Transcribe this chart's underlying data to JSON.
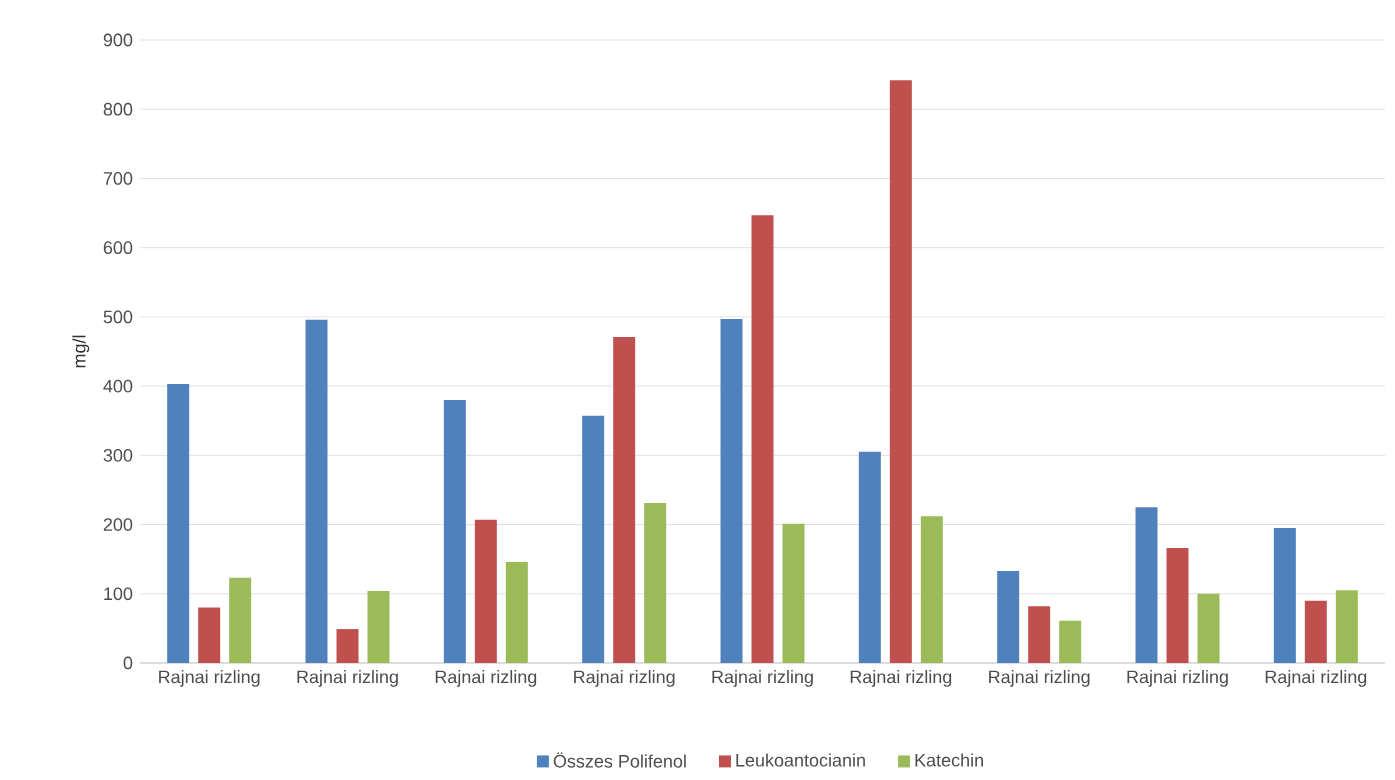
{
  "chart_data": {
    "type": "bar",
    "ylabel": "mg/l",
    "categories": [
      "Rajnai rizling",
      "Rajnai rizling",
      "Rajnai rizling",
      "Rajnai rizling",
      "Rajnai rizling",
      "Rajnai rizling",
      "Rajnai rizling",
      "Rajnai rizling",
      "Rajnai rizling"
    ],
    "series": [
      {
        "name": "Összes Polifenol",
        "color": "#4f81bd",
        "values": [
          403,
          496,
          380,
          357,
          497,
          305,
          133,
          225,
          195
        ]
      },
      {
        "name": "Leukoantocianin",
        "color": "#c0504d",
        "values": [
          80,
          49,
          207,
          471,
          647,
          842,
          82,
          166,
          90
        ]
      },
      {
        "name": "Katechin",
        "color": "#9bbb59",
        "values": [
          123,
          104,
          146,
          231,
          201,
          212,
          61,
          100,
          105
        ]
      }
    ],
    "ylim": [
      0,
      900
    ],
    "yticks": [
      0,
      100,
      200,
      300,
      400,
      500,
      600,
      700,
      800,
      900
    ],
    "grid": "y",
    "legend": "bottom"
  }
}
